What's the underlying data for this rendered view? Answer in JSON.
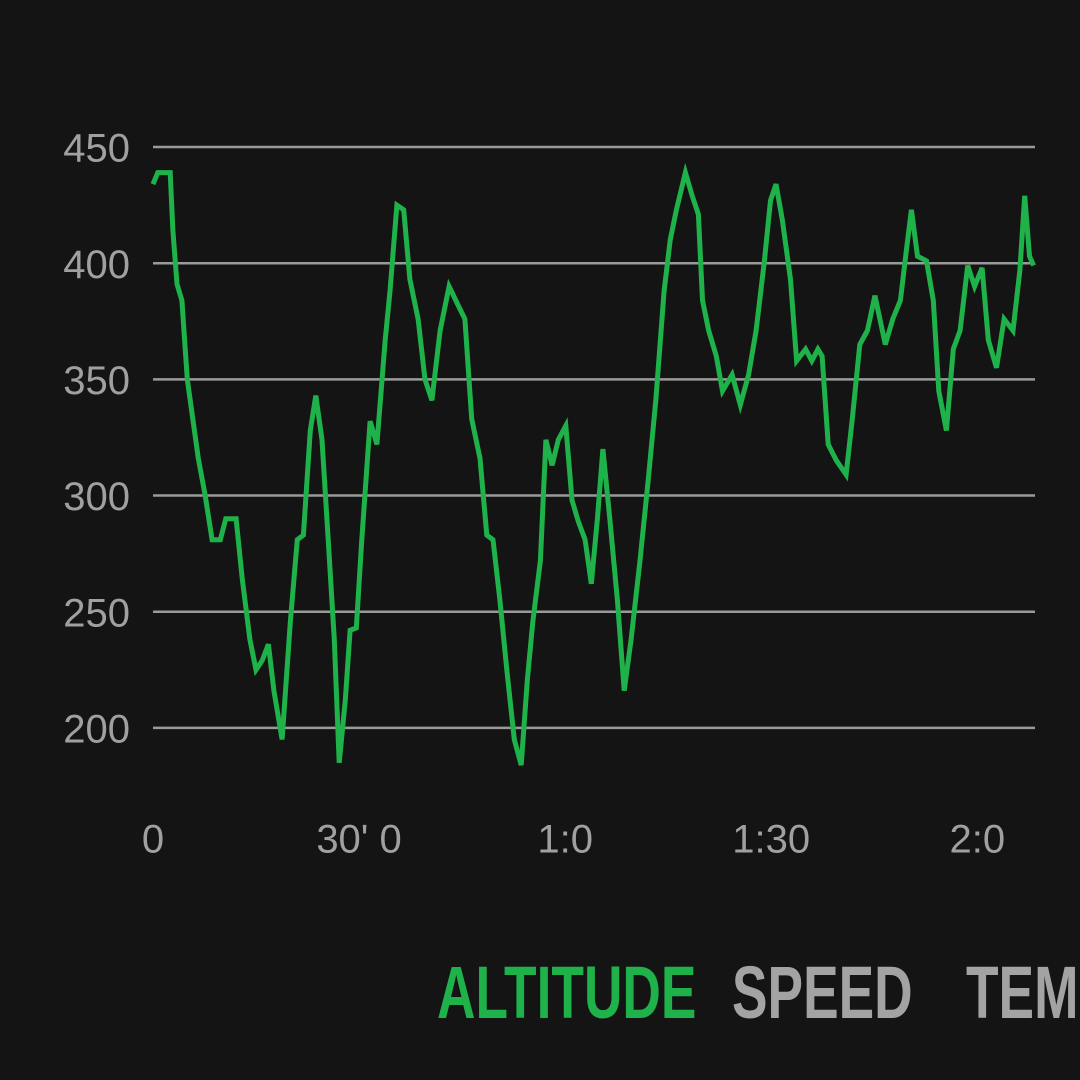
{
  "chart_data": {
    "type": "line",
    "x": [
      0,
      0.7,
      2.5,
      2.9,
      3.5,
      4.2,
      5,
      5.8,
      6.6,
      7.6,
      8.6,
      9.8,
      10.6,
      12.1,
      13,
      14.1,
      15,
      15.9,
      16.8,
      17.6,
      18.8,
      20,
      21,
      21.9,
      22.9,
      23.7,
      24.6,
      25.5,
      26.4,
      27.1,
      28,
      28.7,
      29.6,
      30.4,
      31.6,
      32.6,
      33.8,
      34.5,
      35.5,
      36.5,
      37.4,
      38.6,
      39.6,
      40.6,
      41.8,
      43.1,
      44.4,
      45.4,
      46.4,
      47.6,
      48.6,
      49.5,
      50.5,
      51.5,
      52.6,
      53.6,
      54.5,
      55.3,
      56.4,
      57.2,
      58.1,
      59,
      60.1,
      61,
      61.9,
      62.9,
      63.8,
      64.7,
      65.5,
      66.5,
      67.6,
      68.6,
      69.6,
      70.9,
      72.1,
      73.2,
      74.4,
      75.3,
      76.2,
      77.5,
      78.5,
      79.4,
      80,
      80.9,
      82,
      82.9,
      84.3,
      85.5,
      86.7,
      87.8,
      89,
      89.9,
      90.7,
      91.6,
      92.8,
      93.7,
      95,
      95.9,
      96.8,
      97.4,
      98.3,
      99.5,
      100.9,
      101.8,
      102.9,
      104,
      105.1,
      106.6,
      107.7,
      108.8,
      109.7,
      110.4,
      111.3,
      112.6,
      113.6,
      114.4,
      115.5,
      116.5,
      117.5,
      118.6,
      119.6,
      120.7,
      121.6,
      122.8,
      123.9,
      125.2,
      126.2,
      126.9,
      127.6,
      128.2
    ],
    "series": [
      {
        "name": "ALTITUDE",
        "color": "#1fb24a",
        "values": [
          434,
          439,
          439,
          414,
          391,
          384,
          350,
          333,
          316,
          300,
          281,
          281,
          290,
          290,
          264,
          238,
          225,
          229,
          236,
          216,
          195,
          246,
          281,
          283,
          328,
          343,
          324,
          281,
          238,
          185,
          212,
          242,
          243,
          281,
          332,
          322,
          367,
          388,
          425,
          423,
          393,
          376,
          350,
          341,
          371,
          390,
          382,
          376,
          333,
          316,
          283,
          281,
          255,
          225,
          195,
          184,
          221,
          246,
          272,
          324,
          313,
          324,
          330,
          298,
          289,
          281,
          262,
          290,
          320,
          290,
          255,
          216,
          238,
          272,
          307,
          341,
          388,
          410,
          423,
          439,
          429,
          421,
          384,
          371,
          360,
          345,
          352,
          339,
          352,
          371,
          401,
          427,
          434,
          419,
          393,
          358,
          363,
          358,
          363,
          360,
          322,
          315,
          309,
          333,
          365,
          371,
          386,
          365,
          376,
          384,
          406,
          423,
          403,
          401,
          384,
          345,
          328,
          363,
          371,
          399,
          390,
          398,
          367,
          355,
          376,
          371,
          397,
          429,
          403,
          399
        ]
      }
    ],
    "xlim": [
      0,
      128.4
    ],
    "xticks": [
      0,
      {
        "value": 30,
        "label": "30' 0"
      },
      {
        "value": 60,
        "label": "1:0"
      },
      {
        "value": 90,
        "label": "1:30"
      },
      {
        "value": 120,
        "label": "2:0"
      }
    ],
    "ylim": [
      175,
      455
    ],
    "yticks": [
      200,
      250,
      300,
      350,
      400,
      450
    ],
    "grid": true
  },
  "tabs": [
    {
      "label": "ALTITUDE",
      "active": true
    },
    {
      "label": "SPEED",
      "active": false
    },
    {
      "label": "TEMP",
      "active": false
    }
  ]
}
